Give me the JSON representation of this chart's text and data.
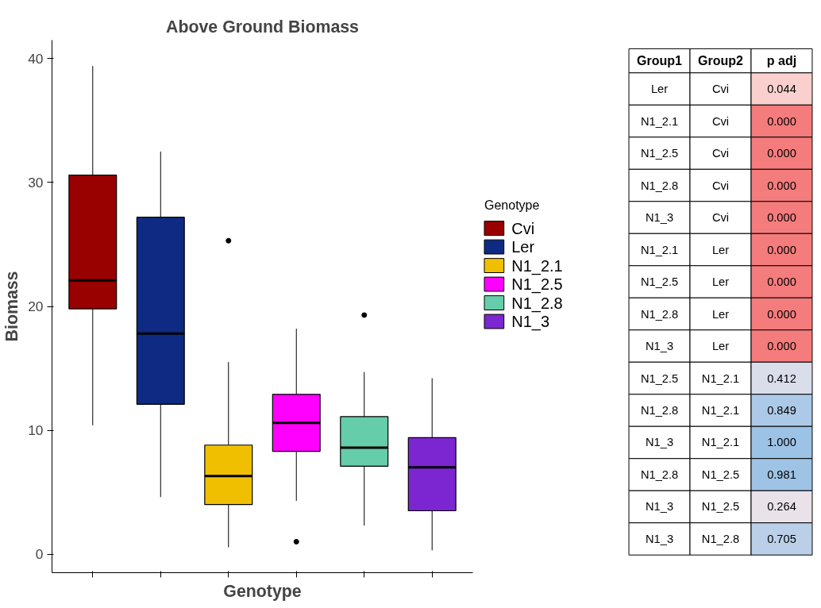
{
  "chart_data": [
    {
      "type": "box",
      "title": "Above Ground Biomass",
      "xlabel": "Genotype",
      "ylabel": "Biomass",
      "legend_title": "Genotype",
      "legend": "right",
      "tick_labels": "y",
      "grid": false,
      "categories": [
        null,
        null,
        null,
        null,
        null,
        null
      ],
      "ylim": [
        -1.5,
        41.5
      ],
      "yticks": [
        0,
        10,
        20,
        30,
        40
      ],
      "series": [
        {
          "name": "Cvi",
          "color": "#990000",
          "boxes": [
            {
              "low": 10.4,
              "q1": 19.8,
              "median": 22.1,
              "q3": 30.6,
              "high": 39.4
            },
            null,
            null,
            null,
            null,
            null
          ]
        },
        {
          "name": "Ler",
          "color": "#0e2a82",
          "boxes": [
            null,
            {
              "low": 4.6,
              "q1": 12.1,
              "median": 17.8,
              "q3": 27.2,
              "high": 32.5
            },
            null,
            null,
            null,
            null
          ]
        },
        {
          "name": "N1_2.1",
          "color": "#f0c000",
          "boxes": [
            null,
            null,
            {
              "low": 0.55,
              "q1": 4.0,
              "median": 6.3,
              "q3": 8.8,
              "high": 15.5,
              "outliers": [
                25.3
              ]
            },
            null,
            null,
            null
          ]
        },
        {
          "name": "N1_2.5",
          "color": "#ff00ff",
          "boxes": [
            null,
            null,
            null,
            {
              "low": 4.3,
              "q1": 8.3,
              "median": 10.6,
              "q3": 12.9,
              "high": 18.2,
              "outliers": [
                1.0
              ]
            },
            null,
            null
          ]
        },
        {
          "name": "N1_2.8",
          "color": "#66cdaa",
          "boxes": [
            null,
            null,
            null,
            null,
            {
              "low": 2.3,
              "q1": 7.1,
              "median": 8.6,
              "q3": 11.1,
              "high": 14.7,
              "outliers": [
                19.3
              ]
            },
            null
          ]
        },
        {
          "name": "N1_3",
          "color": "#7b26d0",
          "boxes": [
            null,
            null,
            null,
            null,
            null,
            {
              "low": 0.3,
              "q1": 3.5,
              "median": 7.0,
              "q3": 9.4,
              "high": 14.2
            }
          ]
        }
      ]
    },
    {
      "type": "heatmap",
      "ylabel": "Group1",
      "y2label": "Group2",
      "categories": [
        "p adj"
      ],
      "y_categories": [
        "Ler",
        "N1_2.1",
        "N1_2.5",
        "N1_2.8",
        "N1_3",
        "N1_2.1",
        "N1_2.5",
        "N1_2.8",
        "N1_3",
        "N1_2.5",
        "N1_2.8",
        "N1_3",
        "N1_2.8",
        "N1_3",
        "N1_3"
      ],
      "y2_categories": [
        "Cvi",
        "Cvi",
        "Cvi",
        "Cvi",
        "Cvi",
        "Ler",
        "Ler",
        "Ler",
        "Ler",
        "N1_2.1",
        "N1_2.1",
        "N1_2.1",
        "N1_2.5",
        "N1_2.5",
        "N1_2.8"
      ],
      "cells": [
        [
          0.044
        ],
        [
          0.0
        ],
        [
          0.0
        ],
        [
          0.0
        ],
        [
          0.0
        ],
        [
          0.0
        ],
        [
          0.0
        ],
        [
          0.0
        ],
        [
          0.0
        ],
        [
          0.412
        ],
        [
          0.849
        ],
        [
          1.0
        ],
        [
          0.981
        ],
        [
          0.264
        ],
        [
          0.705
        ]
      ],
      "cell_labels": [
        [
          "0.044"
        ],
        [
          "0.000"
        ],
        [
          "0.000"
        ],
        [
          "0.000"
        ],
        [
          "0.000"
        ],
        [
          "0.000"
        ],
        [
          "0.000"
        ],
        [
          "0.000"
        ],
        [
          "0.000"
        ],
        [
          "0.412"
        ],
        [
          "0.849"
        ],
        [
          "1.000"
        ],
        [
          "0.981"
        ],
        [
          "0.264"
        ],
        [
          "0.705"
        ]
      ]
    }
  ]
}
